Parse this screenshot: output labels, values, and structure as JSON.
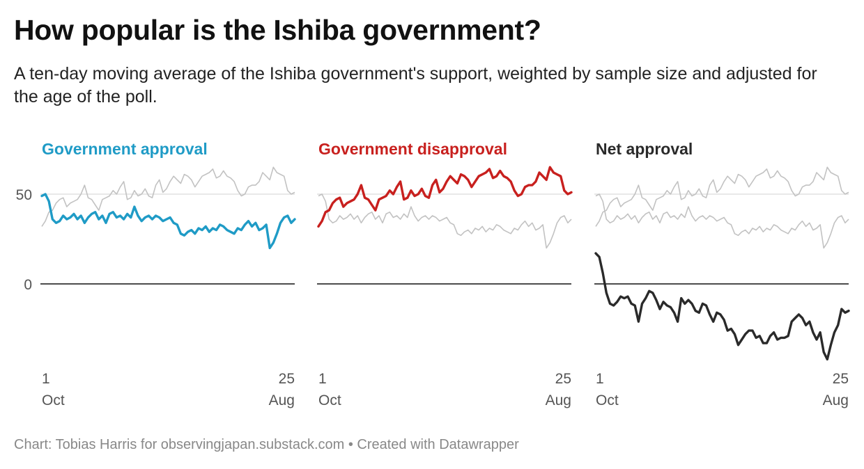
{
  "header": {
    "title": "How popular is the Ishiba government?",
    "subtitle": "A ten-day moving average of the Ishiba government's support, weighted by sample size and adjusted for the age of the poll."
  },
  "footer": {
    "credit": "Chart: Tobias Harris for observingjapan.substack.com • Created with Datawrapper"
  },
  "colors": {
    "approval": "#1f9bc6",
    "disapproval": "#c8201e",
    "net": "#2a2a2a",
    "context": "#c2c2c2",
    "zero": "#111111",
    "ref50": "#d9d9d9",
    "tick": "#555555"
  },
  "chart_data": [
    {
      "type": "line",
      "title": "Government approval",
      "highlight": "approval",
      "context": [
        "disapproval"
      ],
      "ylim": [
        -30,
        60
      ],
      "yticks": [
        50,
        0
      ],
      "xticks": [
        {
          "day": "1",
          "month": "Oct"
        },
        {
          "day": "25",
          "month": "Aug"
        }
      ],
      "xrange": [
        "1 Oct",
        "25 Aug"
      ]
    },
    {
      "type": "line",
      "title": "Government disapproval",
      "highlight": "disapproval",
      "context": [
        "approval"
      ],
      "ylim": [
        -30,
        60
      ],
      "yticks": [],
      "xticks": [
        {
          "day": "1",
          "month": "Oct"
        },
        {
          "day": "25",
          "month": "Aug"
        }
      ],
      "xrange": [
        "1 Oct",
        "25 Aug"
      ]
    },
    {
      "type": "line",
      "title": "Net approval",
      "highlight": "net",
      "context": [
        "approval",
        "disapproval"
      ],
      "ylim": [
        -30,
        60
      ],
      "yticks": [],
      "xticks": [
        {
          "day": "1",
          "month": "Oct"
        },
        {
          "day": "25",
          "month": "Aug"
        }
      ],
      "xrange": [
        "1 Oct",
        "25 Aug"
      ]
    }
  ],
  "series": {
    "period": "1 Oct – 25 Aug",
    "approval": [
      49,
      50,
      46,
      36,
      34,
      35,
      38,
      36,
      37,
      39,
      36,
      38,
      34,
      37,
      39,
      40,
      36,
      38,
      34,
      39,
      40,
      37,
      38,
      36,
      39,
      37,
      43,
      38,
      35,
      37,
      38,
      36,
      38,
      37,
      35,
      36,
      37,
      34,
      33,
      28,
      27,
      29,
      30,
      28,
      31,
      30,
      32,
      29,
      31,
      30,
      33,
      32,
      30,
      29,
      28,
      31,
      30,
      33,
      35,
      32,
      34,
      30,
      31,
      33,
      20,
      23,
      28,
      34,
      37,
      38,
      34,
      36
    ],
    "disapproval": [
      32,
      35,
      40,
      41,
      45,
      47,
      48,
      43,
      45,
      46,
      47,
      50,
      55,
      48,
      47,
      44,
      41,
      47,
      48,
      49,
      52,
      50,
      54,
      57,
      47,
      48,
      52,
      49,
      50,
      53,
      49,
      48,
      55,
      58,
      51,
      53,
      57,
      60,
      58,
      56,
      61,
      60,
      58,
      54,
      57,
      60,
      61,
      62,
      64,
      59,
      60,
      63,
      60,
      59,
      57,
      52,
      49,
      50,
      54,
      55,
      55,
      57,
      62,
      60,
      58,
      65,
      62,
      61,
      60,
      52,
      50,
      51
    ]
  }
}
